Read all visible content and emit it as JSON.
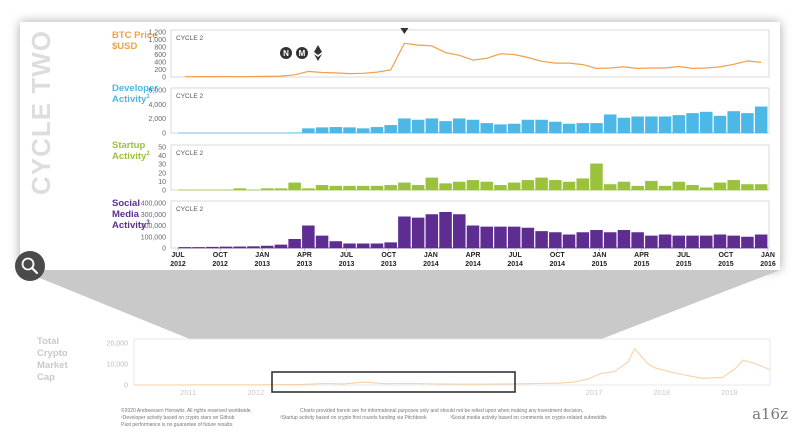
{
  "section_title": "CYCLE TWO",
  "brand": "a16z",
  "zoom_icon": "magnifier-icon",
  "coin_icons": [
    "nano-icon",
    "monero-icon",
    "ethereum-icon"
  ],
  "x_ticks": [
    {
      "month": "JUL",
      "year": "2012"
    },
    {
      "month": "OCT",
      "year": "2012"
    },
    {
      "month": "JAN",
      "year": "2013"
    },
    {
      "month": "APR",
      "year": "2013"
    },
    {
      "month": "JUL",
      "year": "2013"
    },
    {
      "month": "OCT",
      "year": "2013"
    },
    {
      "month": "JAN",
      "year": "2014"
    },
    {
      "month": "APR",
      "year": "2014"
    },
    {
      "month": "JUL",
      "year": "2014"
    },
    {
      "month": "OCT",
      "year": "2014"
    },
    {
      "month": "JAN",
      "year": "2015"
    },
    {
      "month": "APR",
      "year": "2015"
    },
    {
      "month": "JUL",
      "year": "2015"
    },
    {
      "month": "OCT",
      "year": "2015"
    },
    {
      "month": "JAN",
      "year": "2016"
    }
  ],
  "colors": {
    "btc": "#f0a04b",
    "dev": "#4cb8e8",
    "startup": "#9bc23c",
    "social": "#5e2d91",
    "title_gray": "#dddddd",
    "overview_line": "#f7d2a8"
  },
  "chart_data": [
    {
      "type": "line",
      "label_lines": [
        "BTC Price",
        "$USD"
      ],
      "tag": "CYCLE 2",
      "y_ticks": [
        "1,200",
        "1,000",
        "800",
        "600",
        "400",
        "200",
        "0"
      ],
      "ylim": [
        0,
        1200
      ],
      "x": [
        "2012-07",
        "2012-08",
        "2012-09",
        "2012-10",
        "2012-11",
        "2012-12",
        "2013-01",
        "2013-02",
        "2013-03",
        "2013-04",
        "2013-05",
        "2013-06",
        "2013-07",
        "2013-08",
        "2013-09",
        "2013-10",
        "2013-11",
        "2013-12",
        "2014-01",
        "2014-02",
        "2014-03",
        "2014-04",
        "2014-05",
        "2014-06",
        "2014-07",
        "2014-08",
        "2014-09",
        "2014-10",
        "2014-11",
        "2014-12",
        "2015-01",
        "2015-02",
        "2015-03",
        "2015-04",
        "2015-05",
        "2015-06",
        "2015-07",
        "2015-08",
        "2015-09",
        "2015-10",
        "2015-11",
        "2015-12",
        "2016-01"
      ],
      "values": [
        8,
        10,
        11,
        12,
        11,
        13,
        15,
        25,
        60,
        150,
        120,
        110,
        90,
        100,
        130,
        190,
        900,
        850,
        830,
        650,
        580,
        450,
        500,
        620,
        600,
        520,
        420,
        370,
        370,
        330,
        230,
        240,
        270,
        230,
        240,
        240,
        280,
        230,
        240,
        270,
        340,
        430,
        390
      ]
    },
    {
      "type": "bar",
      "label_lines": [
        "Developer",
        "Activity"
      ],
      "label_note": "1",
      "tag": "CYCLE 2",
      "y_ticks": [
        "6,000",
        "4,000",
        "2,000",
        "0"
      ],
      "ylim": [
        0,
        6500
      ],
      "categories": [
        "2012-07",
        "2012-08",
        "2012-09",
        "2012-10",
        "2012-11",
        "2012-12",
        "2013-01",
        "2013-02",
        "2013-03",
        "2013-04",
        "2013-05",
        "2013-06",
        "2013-07",
        "2013-08",
        "2013-09",
        "2013-10",
        "2013-11",
        "2013-12",
        "2014-01",
        "2014-02",
        "2014-03",
        "2014-04",
        "2014-05",
        "2014-06",
        "2014-07",
        "2014-08",
        "2014-09",
        "2014-10",
        "2014-11",
        "2014-12",
        "2015-01",
        "2015-02",
        "2015-03",
        "2015-04",
        "2015-05",
        "2015-06",
        "2015-07",
        "2015-08",
        "2015-09",
        "2015-10",
        "2015-11",
        "2015-12",
        "2016-01"
      ],
      "values": [
        0,
        0,
        0,
        0,
        0,
        0,
        0,
        0,
        80,
        700,
        850,
        900,
        850,
        700,
        900,
        1200,
        2200,
        2000,
        2200,
        1800,
        2200,
        2000,
        1500,
        1300,
        1400,
        2000,
        2000,
        1700,
        1400,
        1500,
        1500,
        2800,
        2300,
        2500,
        2500,
        2500,
        2700,
        3000,
        3200,
        2600,
        3300,
        3000,
        4000
      ]
    },
    {
      "type": "bar",
      "label_lines": [
        "Startup",
        "Activity"
      ],
      "label_note": "2",
      "tag": "CYCLE 2",
      "y_ticks": [
        "50",
        "40",
        "30",
        "20",
        "10",
        "0"
      ],
      "ylim": [
        0,
        52
      ],
      "categories": [
        "2012-07",
        "2012-08",
        "2012-09",
        "2012-10",
        "2012-11",
        "2012-12",
        "2013-01",
        "2013-02",
        "2013-03",
        "2013-04",
        "2013-05",
        "2013-06",
        "2013-07",
        "2013-08",
        "2013-09",
        "2013-10",
        "2013-11",
        "2013-12",
        "2014-01",
        "2014-02",
        "2014-03",
        "2014-04",
        "2014-05",
        "2014-06",
        "2014-07",
        "2014-08",
        "2014-09",
        "2014-10",
        "2014-11",
        "2014-12",
        "2015-01",
        "2015-02",
        "2015-03",
        "2015-04",
        "2015-05",
        "2015-06",
        "2015-07",
        "2015-08",
        "2015-09",
        "2015-10",
        "2015-11",
        "2015-12",
        "2016-01"
      ],
      "values": [
        0,
        0,
        0,
        0,
        2,
        0,
        2,
        2,
        9,
        2,
        6,
        5,
        5,
        5,
        5,
        6,
        9,
        6,
        15,
        8,
        10,
        12,
        10,
        6,
        9,
        12,
        15,
        12,
        10,
        14,
        32,
        7,
        10,
        5,
        11,
        5,
        10,
        6,
        3,
        9,
        12,
        7,
        7
      ]
    },
    {
      "type": "bar",
      "label_lines": [
        "Social",
        "Media",
        "Activity"
      ],
      "label_note": "3",
      "tag": "CYCLE 2",
      "y_ticks": [
        "400,000",
        "300,000",
        "200,000",
        "100,000",
        "0"
      ],
      "ylim": [
        0,
        400000
      ],
      "categories": [
        "2012-07",
        "2012-08",
        "2012-09",
        "2012-10",
        "2012-11",
        "2012-12",
        "2013-01",
        "2013-02",
        "2013-03",
        "2013-04",
        "2013-05",
        "2013-06",
        "2013-07",
        "2013-08",
        "2013-09",
        "2013-10",
        "2013-11",
        "2013-12",
        "2014-01",
        "2014-02",
        "2014-03",
        "2014-04",
        "2014-05",
        "2014-06",
        "2014-07",
        "2014-08",
        "2014-09",
        "2014-10",
        "2014-11",
        "2014-12",
        "2015-01",
        "2015-02",
        "2015-03",
        "2015-04",
        "2015-05",
        "2015-06",
        "2015-07",
        "2015-08",
        "2015-09",
        "2015-10",
        "2015-11",
        "2015-12",
        "2016-01"
      ],
      "values": [
        8000,
        8000,
        10000,
        12000,
        13000,
        15000,
        20000,
        30000,
        80000,
        200000,
        110000,
        60000,
        40000,
        40000,
        40000,
        50000,
        280000,
        270000,
        300000,
        320000,
        300000,
        200000,
        190000,
        190000,
        190000,
        180000,
        150000,
        140000,
        120000,
        140000,
        160000,
        140000,
        160000,
        140000,
        110000,
        120000,
        110000,
        110000,
        110000,
        120000,
        110000,
        100000,
        120000
      ]
    },
    {
      "type": "area",
      "label_lines": [
        "Total",
        "Crypto",
        "Market",
        "Cap"
      ],
      "y_ticks": [
        "20,000",
        "10,000",
        "0"
      ],
      "ylim": [
        0,
        22000
      ],
      "x_ticks": [
        "2011",
        "2012",
        "2017",
        "2018",
        "2019"
      ],
      "x": [
        2010.5,
        2011,
        2011.5,
        2012,
        2012.5,
        2013,
        2013.3,
        2013.6,
        2013.9,
        2014.2,
        2014.6,
        2015,
        2015.5,
        2016,
        2016.5,
        2016.8,
        2017,
        2017.2,
        2017.4,
        2017.6,
        2017.8,
        2017.9,
        2018.0,
        2018.1,
        2018.2,
        2018.4,
        2018.6,
        2018.9,
        2019.2,
        2019.4,
        2019.5,
        2019.7,
        2019.9
      ],
      "values": [
        0,
        0,
        100,
        100,
        150,
        300,
        800,
        600,
        1500,
        700,
        800,
        500,
        400,
        500,
        800,
        1000,
        1500,
        3000,
        6000,
        7000,
        12000,
        19000,
        15000,
        11000,
        9000,
        7000,
        5500,
        3500,
        4000,
        9000,
        13000,
        11000,
        8000
      ]
    }
  ],
  "footer": {
    "copyright": "©2020 Andreessen Horowitz. All rights reserved worldwide.",
    "disclaimer": "Charts provided herein are for informational purposes only and should not be relied upon when making any investment decision.",
    "note1": "¹Developer activity based on crypto stars on Github",
    "note2": "²Startup activity based on crypto first rounds funding via Pitchbook",
    "note3": "³Social media activity based on comments on crypto-related subreddits",
    "past": "Past performance is no guarantee of future results."
  }
}
